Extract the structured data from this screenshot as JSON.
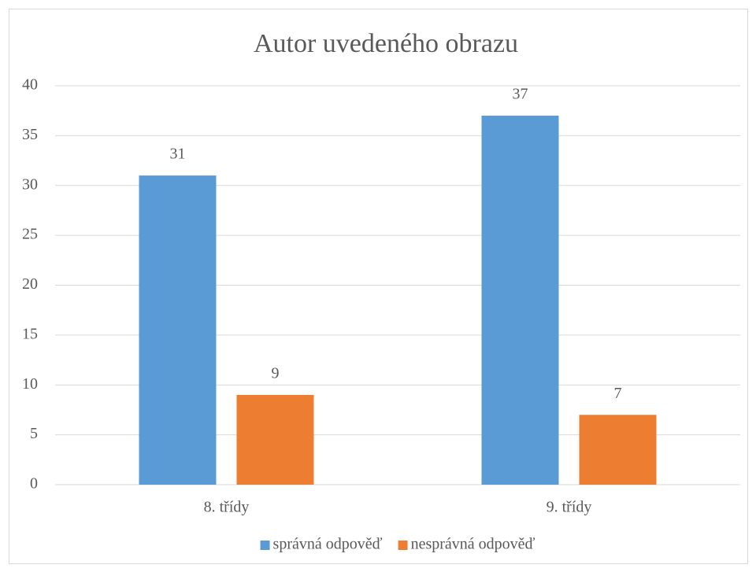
{
  "chart_data": {
    "type": "bar",
    "title": "Autor uvedeného obrazu",
    "categories": [
      "8. třídy",
      "9. třídy"
    ],
    "series": [
      {
        "name": "správná odpověď",
        "color": "#5b9bd5",
        "values": [
          31,
          37
        ]
      },
      {
        "name": "nesprávná odpověď",
        "color": "#ed7d31",
        "values": [
          9,
          7
        ]
      }
    ],
    "ylim": [
      0,
      40
    ],
    "yticks": [
      0,
      5,
      10,
      15,
      20,
      25,
      30,
      35,
      40
    ],
    "grid": true,
    "legend": "bottom"
  }
}
